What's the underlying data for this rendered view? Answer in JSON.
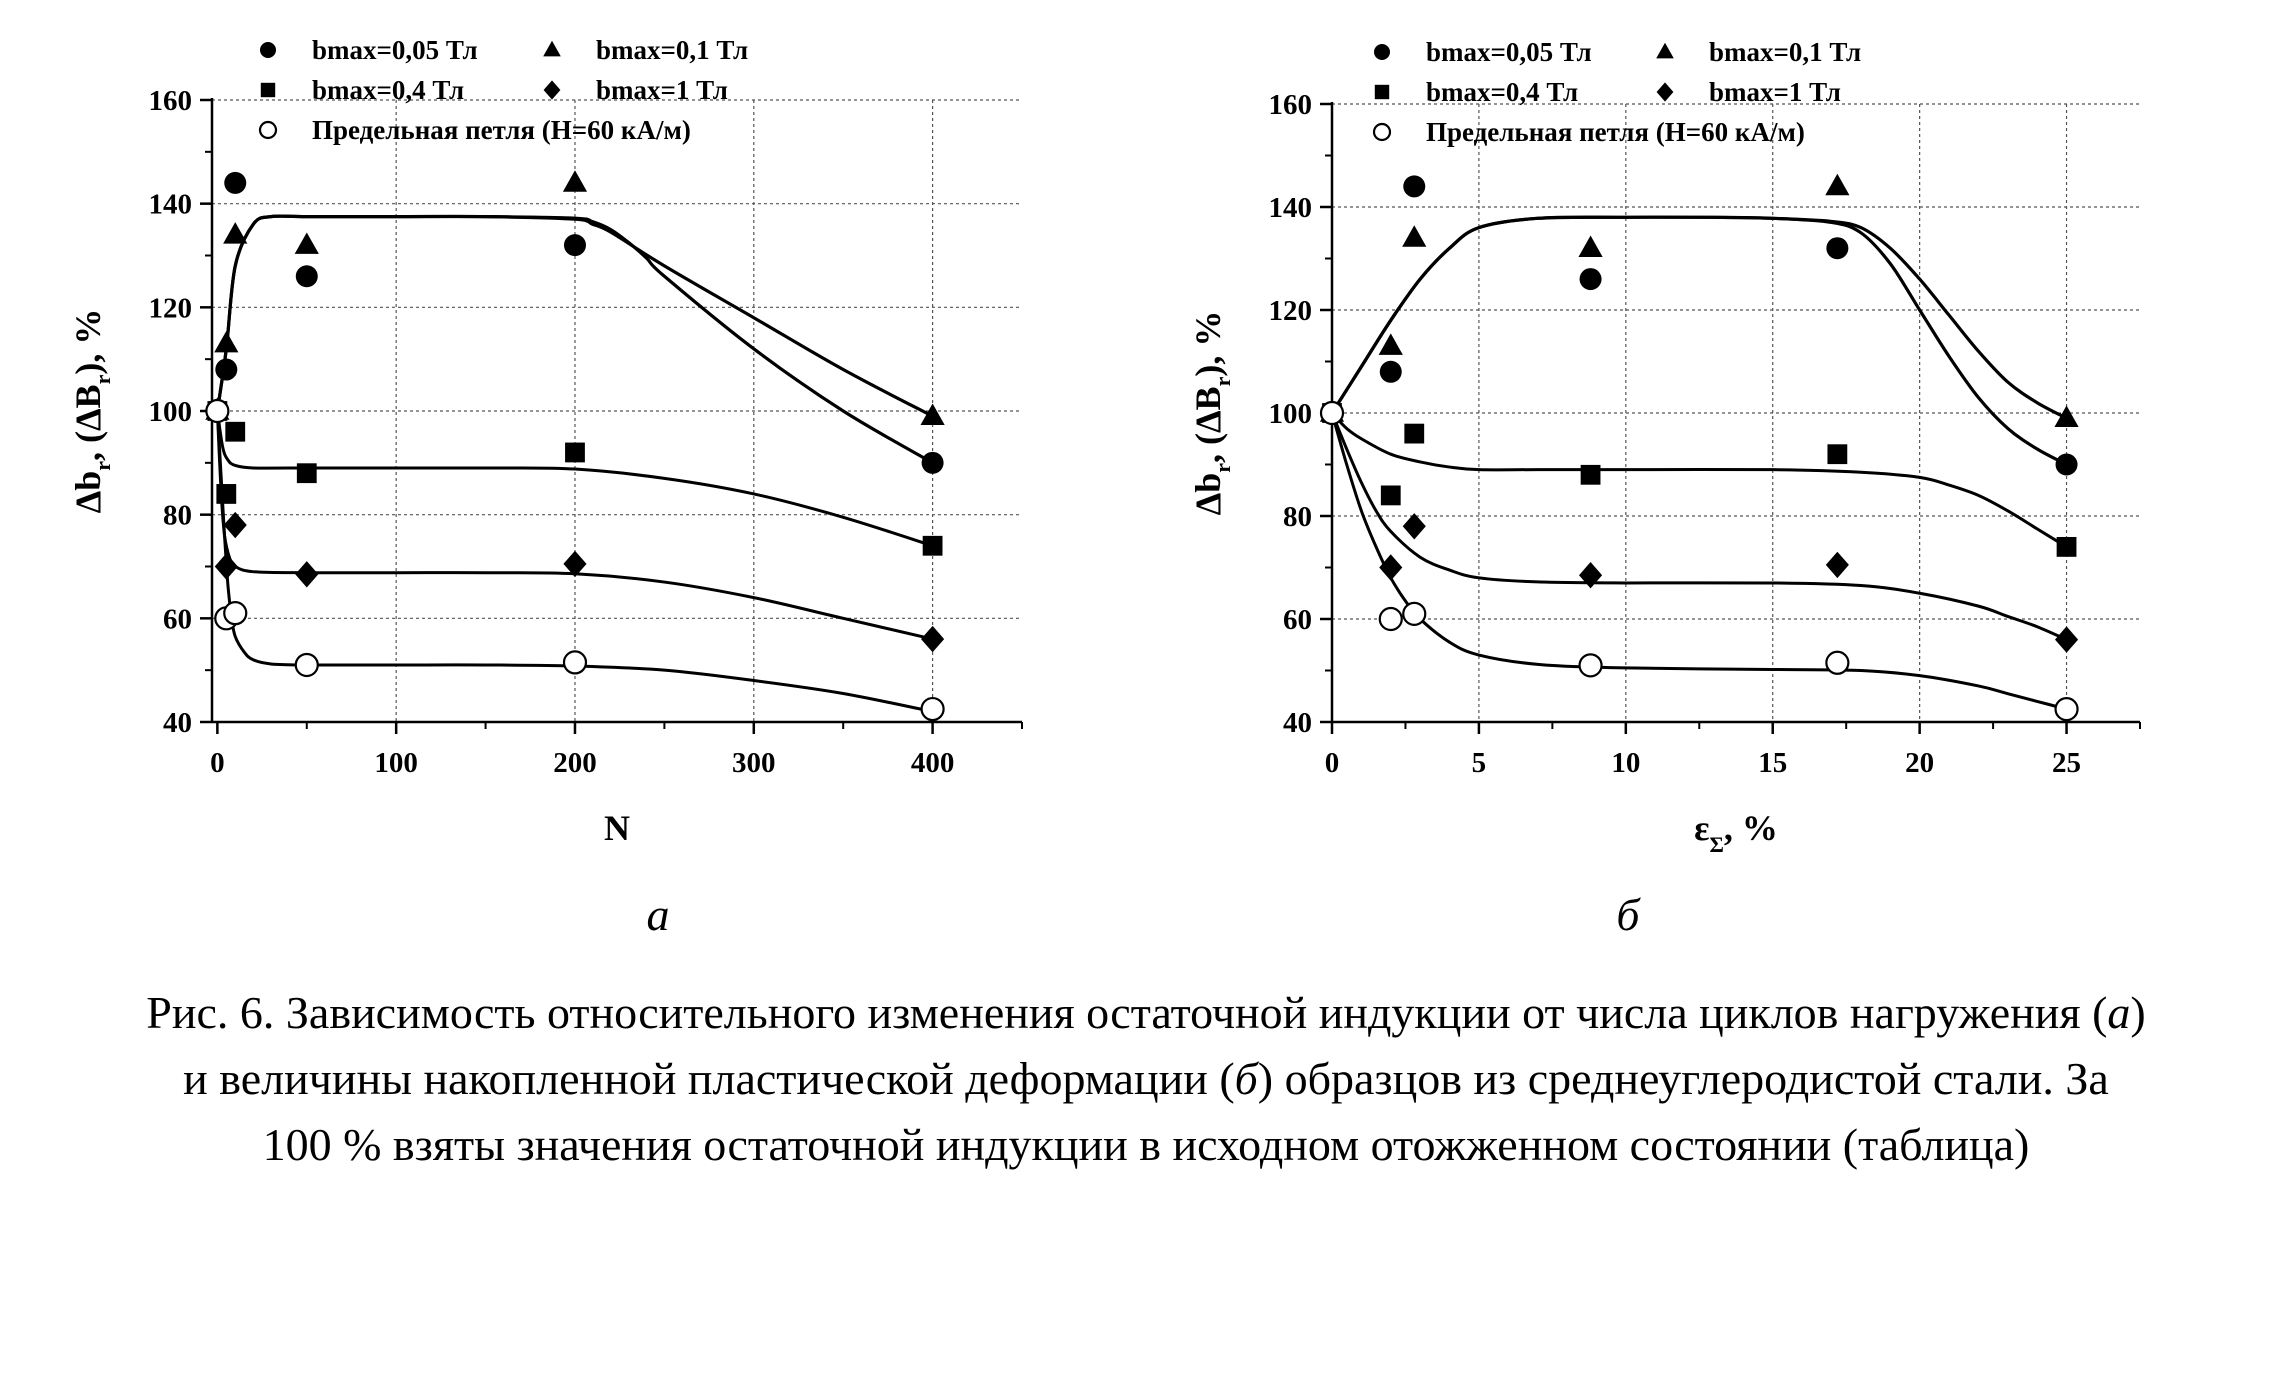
{
  "chart_data": [
    {
      "type": "scatter",
      "panel_label": "а",
      "title": "",
      "xlabel": "N",
      "ylabel_main": "Δb",
      "ylabel_sub1": "r",
      "ylabel_mid": ", (ΔB",
      "ylabel_sub2": "r",
      "ylabel_end": "), %",
      "xlim": [
        -3,
        450
      ],
      "ylim": [
        40,
        160
      ],
      "xticks": [
        0,
        100,
        200,
        300,
        400
      ],
      "yticks": [
        40,
        60,
        80,
        100,
        120,
        140,
        160
      ],
      "grid": true,
      "legend_position": "top",
      "series": [
        {
          "name": "bmax=0,05 Тл",
          "marker": "circle-filled",
          "x": [
            0,
            5,
            10,
            50,
            200,
            400
          ],
          "y": [
            100,
            108,
            144,
            126,
            132,
            90
          ],
          "fit_x": [
            0,
            5,
            10,
            20,
            30,
            50,
            100,
            150,
            200,
            210,
            220,
            230,
            240,
            250,
            300,
            350,
            400
          ],
          "fit_y": [
            100,
            112,
            128,
            136,
            137.5,
            137.5,
            137.5,
            137.5,
            137.2,
            136.5,
            135,
            132.5,
            129.5,
            126,
            112,
            100,
            90
          ]
        },
        {
          "name": "bmax=0,1 Тл",
          "marker": "triangle-filled",
          "x": [
            0,
            5,
            10,
            50,
            200,
            400
          ],
          "y": [
            100,
            113,
            134,
            132,
            144,
            99
          ],
          "fit_x": [
            0,
            5,
            10,
            20,
            30,
            50,
            100,
            150,
            200,
            210,
            220,
            250,
            300,
            350,
            400
          ],
          "fit_y": [
            100,
            112,
            128,
            136,
            137.5,
            137.5,
            137.5,
            137.5,
            137,
            136,
            134.5,
            128,
            118,
            108,
            99
          ]
        },
        {
          "name": "bmax=0,4 Тл",
          "marker": "square-filled",
          "x": [
            0,
            5,
            10,
            50,
            200,
            400
          ],
          "y": [
            100,
            84,
            96,
            88,
            92,
            74
          ],
          "fit_x": [
            0,
            3,
            6,
            10,
            20,
            40,
            100,
            150,
            200,
            250,
            300,
            350,
            400
          ],
          "fit_y": [
            100,
            93,
            90.5,
            89.5,
            89,
            89,
            89,
            89,
            88.8,
            87,
            84,
            79.5,
            74
          ]
        },
        {
          "name": "bmax=1 Тл",
          "marker": "diamond-filled",
          "x": [
            0,
            5,
            10,
            50,
            200,
            400
          ],
          "y": [
            100,
            70,
            78,
            68.5,
            70.5,
            56
          ],
          "fit_x": [
            0,
            2,
            4,
            7,
            10,
            20,
            50,
            100,
            150,
            200,
            250,
            300,
            350,
            400
          ],
          "fit_y": [
            100,
            85,
            76,
            71.5,
            70,
            69,
            68.8,
            68.8,
            68.8,
            68.6,
            67,
            64,
            60,
            56
          ]
        },
        {
          "name": "Предельная петля (H=60 кА/м)",
          "marker": "circle-open",
          "x": [
            0,
            5,
            10,
            50,
            200,
            400
          ],
          "y": [
            100,
            60,
            61,
            51,
            51.5,
            42.5
          ],
          "fit_x": [
            0,
            2,
            4,
            6,
            8,
            10,
            15,
            20,
            30,
            50,
            100,
            150,
            200,
            250,
            300,
            350,
            400
          ],
          "fit_y": [
            100,
            88,
            76,
            66,
            60,
            56.5,
            53.5,
            52,
            51.2,
            51,
            51,
            51,
            50.8,
            50,
            48,
            45.5,
            42
          ]
        }
      ]
    },
    {
      "type": "scatter",
      "panel_label": "б",
      "title": "",
      "xlabel": "ε",
      "xlabel_sub": "Σ",
      "xlabel_end": ", %",
      "ylabel_main": "Δb",
      "ylabel_sub1": "r",
      "ylabel_mid": ", (ΔB",
      "ylabel_sub2": "r",
      "ylabel_end": "), %",
      "xlim": [
        0,
        27.5
      ],
      "ylim": [
        40,
        160
      ],
      "xticks": [
        0,
        5,
        10,
        15,
        20,
        25
      ],
      "yticks": [
        40,
        60,
        80,
        100,
        120,
        140,
        160
      ],
      "grid": true,
      "legend_position": "top",
      "series": [
        {
          "name": "bmax=0,05 Тл",
          "marker": "circle-filled",
          "x": [
            0,
            2,
            2.8,
            8.8,
            17.2,
            25
          ],
          "y": [
            100,
            108,
            144,
            126,
            132,
            90
          ],
          "fit_x": [
            0,
            1,
            2,
            3,
            4,
            5,
            7,
            10,
            13,
            15,
            17,
            18,
            19,
            20,
            21,
            22,
            23,
            24,
            25
          ],
          "fit_y": [
            100,
            109,
            118,
            126,
            132,
            136,
            137.8,
            138,
            138,
            137.8,
            137,
            135,
            129,
            120,
            111,
            103,
            97,
            93,
            90
          ]
        },
        {
          "name": "bmax=0,1 Тл",
          "marker": "triangle-filled",
          "x": [
            0,
            2,
            2.8,
            8.8,
            17.2,
            25
          ],
          "y": [
            100,
            113,
            134,
            132,
            144,
            99
          ],
          "fit_x": [
            0,
            1,
            2,
            3,
            4,
            5,
            7,
            10,
            13,
            15,
            17,
            18,
            19,
            20,
            21,
            22,
            23,
            24,
            25
          ],
          "fit_y": [
            100,
            109,
            118,
            126,
            132,
            136,
            137.8,
            138,
            138,
            137.8,
            137.2,
            136,
            132,
            126,
            119,
            112,
            106,
            102,
            99
          ]
        },
        {
          "name": "bmax=0,4 Тл",
          "marker": "square-filled",
          "x": [
            0,
            2,
            2.8,
            8.8,
            17.2,
            25
          ],
          "y": [
            100,
            84,
            96,
            88,
            92,
            74
          ],
          "fit_x": [
            0,
            0.5,
            1,
            2,
            3,
            4,
            5,
            7,
            10,
            15,
            18,
            20,
            21,
            22,
            23,
            24,
            25
          ],
          "fit_y": [
            100,
            97,
            95,
            92,
            90.5,
            89.5,
            89,
            89,
            89,
            89,
            88.5,
            87.5,
            86,
            84,
            81,
            77.5,
            74
          ]
        },
        {
          "name": "bmax=1 Тл",
          "marker": "diamond-filled",
          "x": [
            0,
            2,
            2.8,
            8.8,
            17.2,
            25
          ],
          "y": [
            100,
            70,
            78,
            68.5,
            70.5,
            56
          ],
          "fit_x": [
            0,
            0.5,
            1,
            1.5,
            2,
            3,
            4,
            5,
            7,
            10,
            15,
            18,
            20,
            22,
            23,
            24,
            25
          ],
          "fit_y": [
            100,
            93,
            86.5,
            81,
            77,
            72,
            69.5,
            68,
            67.2,
            67,
            67,
            66.5,
            65,
            62.5,
            60.5,
            58.5,
            56
          ]
        },
        {
          "name": "Предельная петля (H=60 кА/м)",
          "marker": "circle-open",
          "x": [
            0,
            2,
            2.8,
            8.8,
            17.2,
            25
          ],
          "y": [
            100,
            60,
            61,
            51,
            51.5,
            42.5
          ],
          "fit_x": [
            0,
            0.5,
            1,
            1.5,
            2,
            2.5,
            3,
            4,
            5,
            7,
            10,
            15,
            18,
            20,
            22,
            23,
            24,
            25
          ],
          "fit_y": [
            100,
            90,
            81,
            74,
            68,
            63.5,
            60,
            55.5,
            53,
            51.2,
            50.5,
            50.2,
            50,
            49,
            47,
            45.5,
            44,
            42.5
          ]
        }
      ]
    }
  ],
  "caption": {
    "text_1": "Рис. 6. Зависимость относительного изменения остаточной индукции от числа циклов нагружения (",
    "italic_a": "а",
    "text_2": ") и величины накопленной пластической деформации (",
    "italic_b": "б",
    "text_3": ") образцов из среднеуглеродистой стали. За 100 % взяты значения остаточной индукции в исходном отожженном состоянии (таблица)"
  }
}
